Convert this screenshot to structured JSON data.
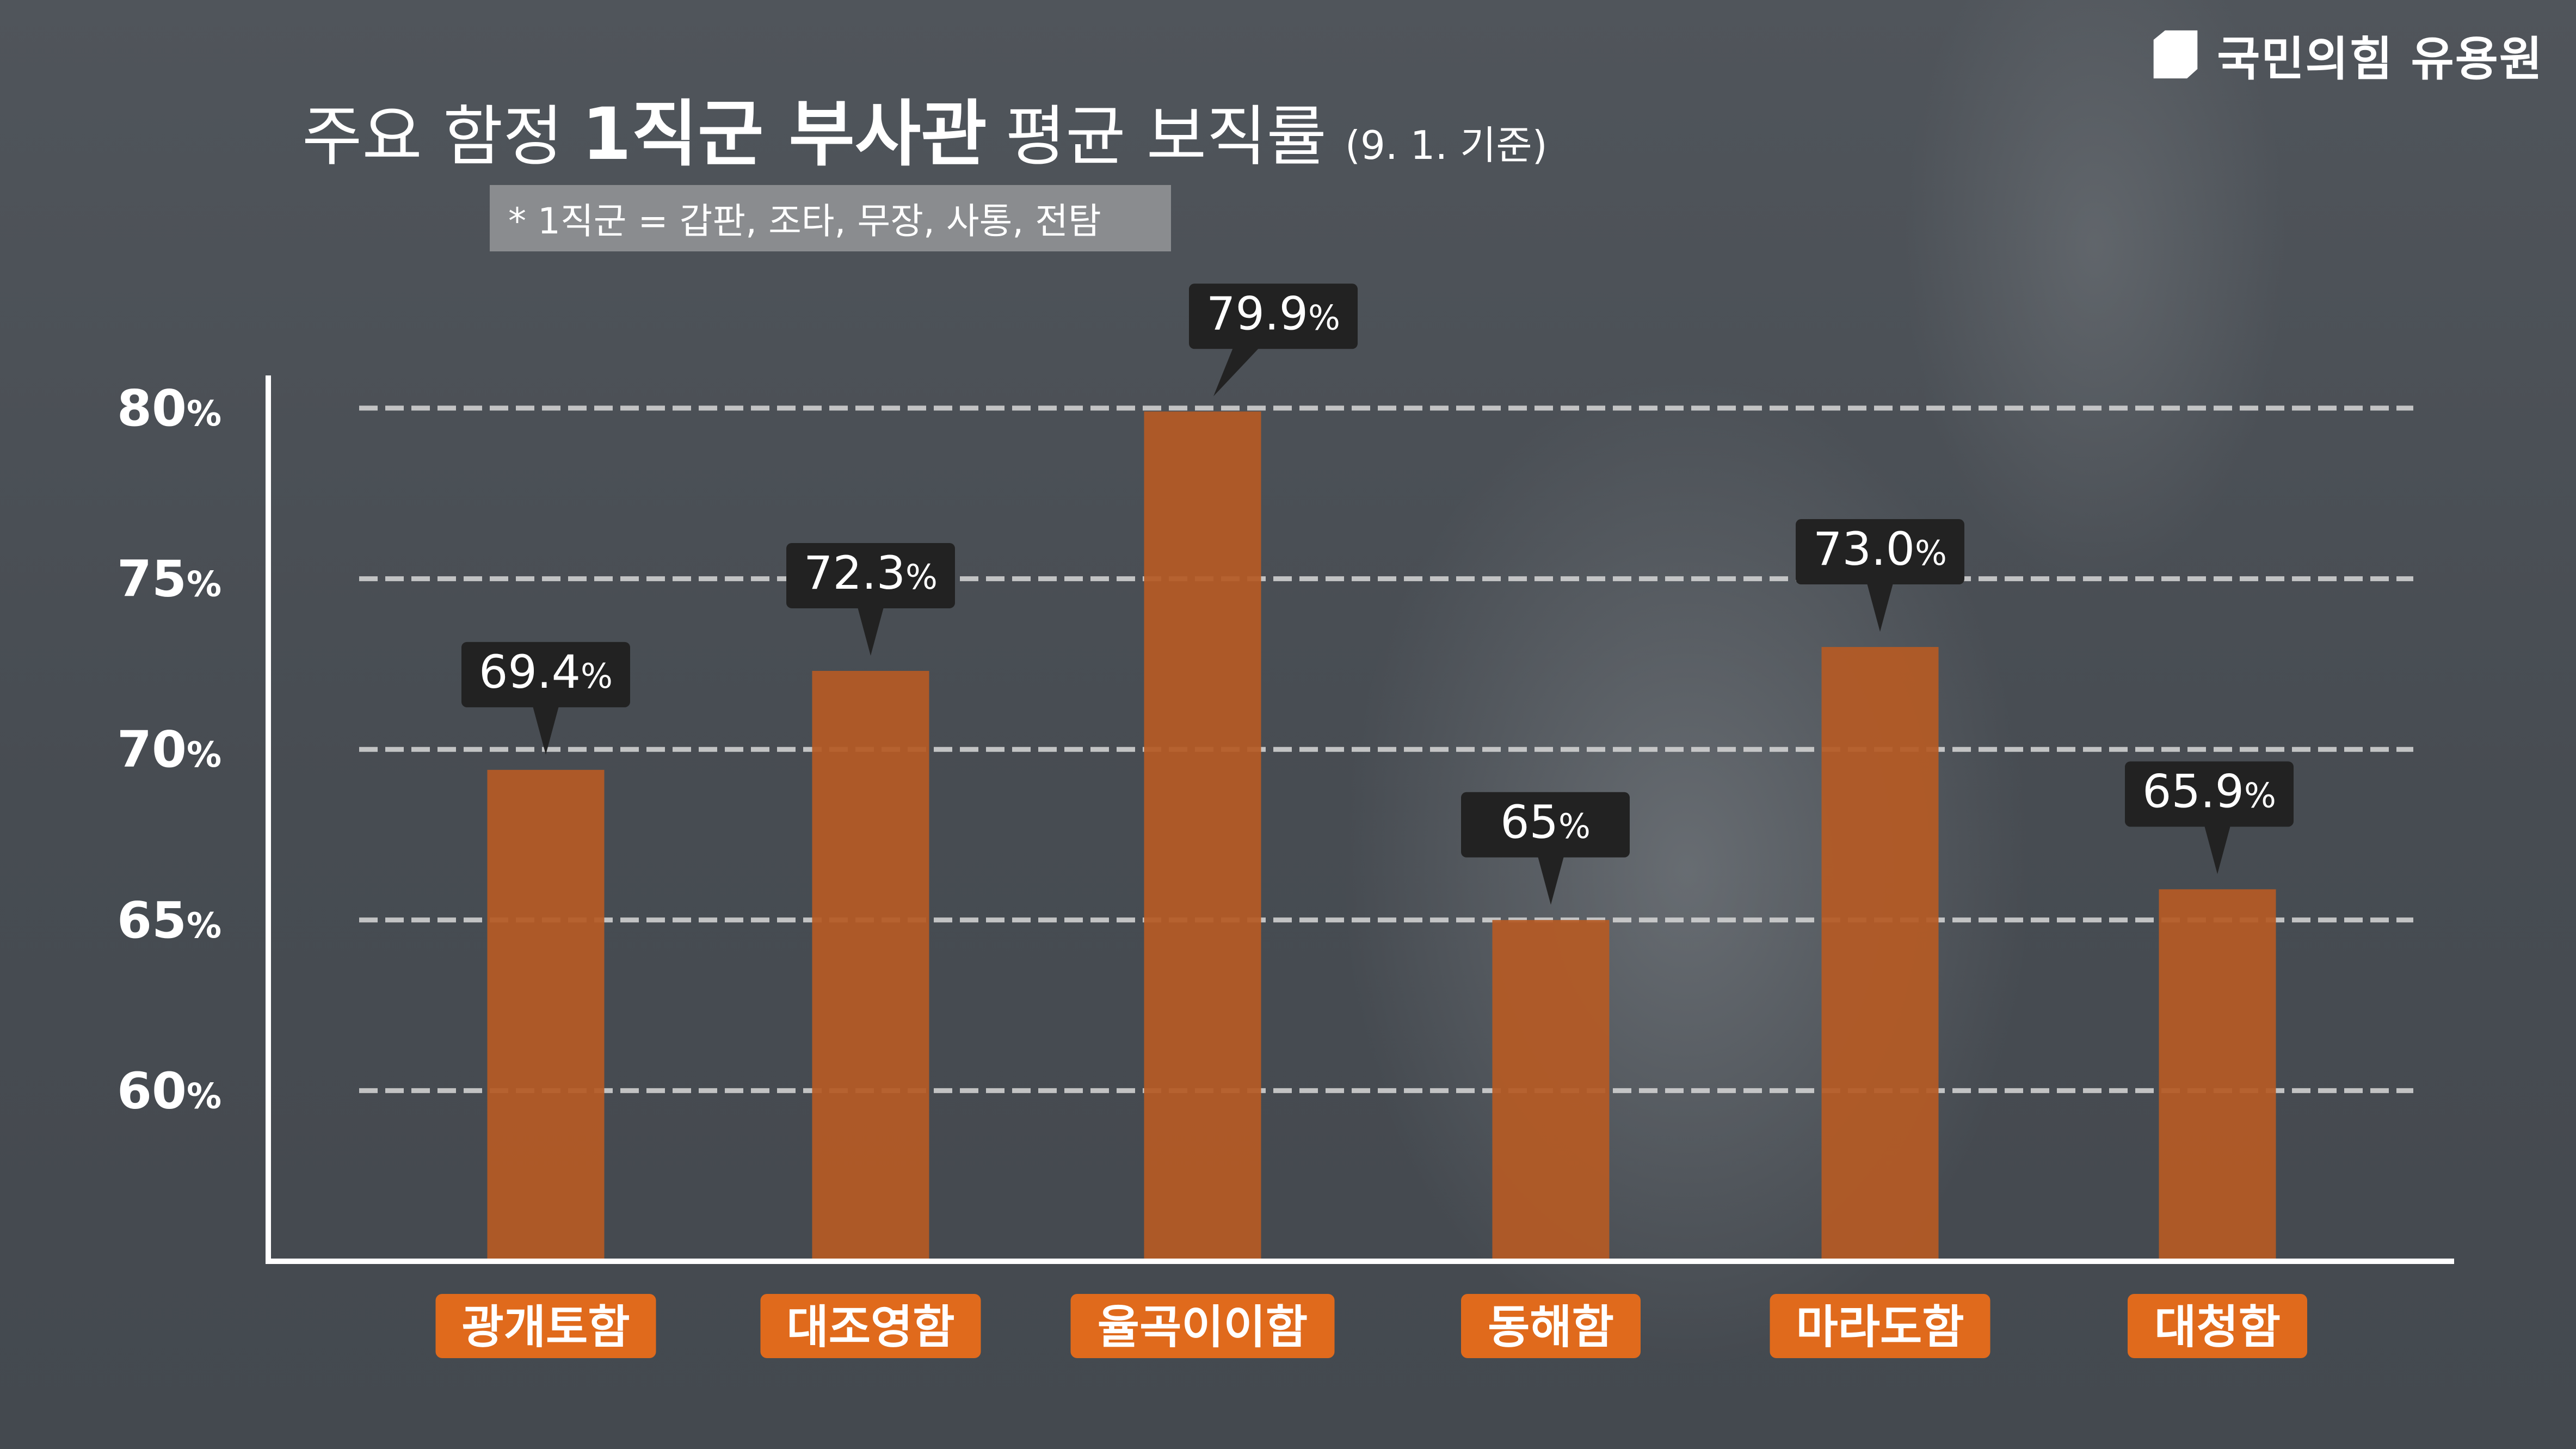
{
  "brand": {
    "name": "국민의힘 유용원",
    "logo_icon": "party-logo-icon"
  },
  "title": {
    "part1": "주요 함정",
    "part2": "1직군 부사관",
    "part3": "평균 보직률",
    "basis": "(9. 1. 기준)"
  },
  "note": "* 1직군 = 갑판, 조타, 무장, 사통, 전탐",
  "colors": {
    "bar": "#b55a25",
    "category_label_bg": "#e06a1c",
    "value_label_bg": "#222222",
    "gridline": "#d8d8d8",
    "axis": "#ffffff"
  },
  "chart_data": {
    "type": "bar",
    "categories": [
      "광개토함",
      "대조영함",
      "율곡이이함",
      "동해함",
      "마라도함",
      "대청함"
    ],
    "values": [
      69.4,
      72.3,
      79.9,
      65,
      73,
      65.9
    ],
    "value_labels": [
      "69.4",
      "72.3",
      "79.9",
      "65",
      "73.0",
      "65.9"
    ],
    "value_unit": "%",
    "yticks": [
      60,
      65,
      70,
      75,
      80
    ],
    "ytick_unit": "%",
    "ylim": [
      55,
      80
    ],
    "grid": true,
    "grid_style": "dashed",
    "title": "주요 함정 1직군 부사관 평균 보직률"
  }
}
